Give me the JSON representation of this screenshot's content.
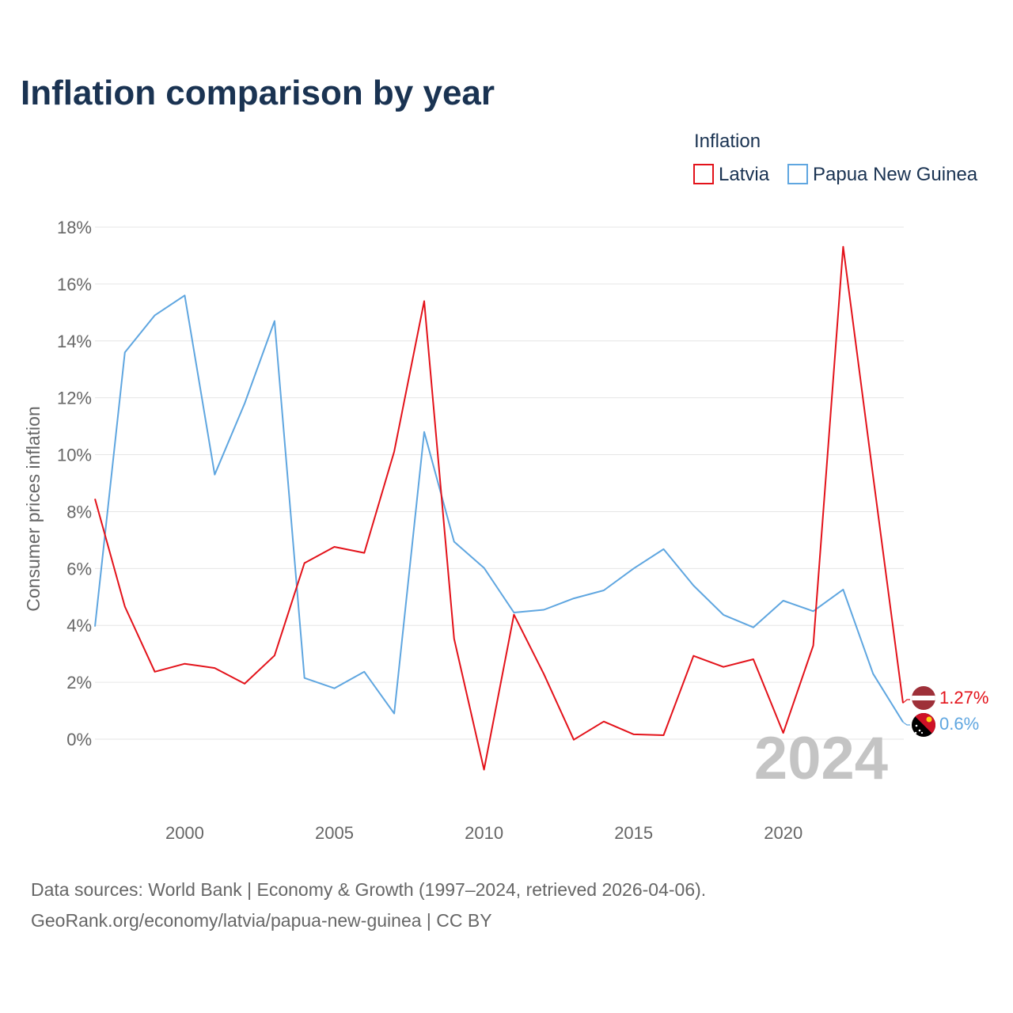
{
  "chart_data": {
    "type": "line",
    "title": "Inflation comparison by year",
    "ylabel": "Consumer prices inflation",
    "xlabel": "",
    "legend_title": "Inflation",
    "legend_position": "top-right",
    "x": [
      1997,
      1998,
      1999,
      2000,
      2001,
      2002,
      2003,
      2004,
      2005,
      2006,
      2007,
      2008,
      2009,
      2010,
      2011,
      2012,
      2013,
      2014,
      2015,
      2016,
      2017,
      2018,
      2019,
      2020,
      2021,
      2022,
      2023,
      2024
    ],
    "xlim": [
      1997,
      2024
    ],
    "ylim": [
      -2,
      18
    ],
    "y_ticks": [
      0,
      2,
      4,
      6,
      8,
      10,
      12,
      14,
      16,
      18
    ],
    "y_tick_labels": [
      "0%",
      "2%",
      "4%",
      "6%",
      "8%",
      "10%",
      "12%",
      "14%",
      "16%",
      "18%"
    ],
    "x_ticks": [
      2000,
      2005,
      2010,
      2015,
      2020
    ],
    "x_tick_labels": [
      "2000",
      "2005",
      "2010",
      "2015",
      "2020"
    ],
    "grid": true,
    "series": [
      {
        "name": "Latvia",
        "color": "#e3121a",
        "values": [
          8.45,
          4.66,
          2.37,
          2.65,
          2.5,
          1.95,
          2.94,
          6.19,
          6.76,
          6.55,
          10.11,
          15.4,
          3.53,
          -1.07,
          4.38,
          2.29,
          -0.02,
          0.62,
          0.17,
          0.14,
          2.93,
          2.54,
          2.81,
          0.22,
          3.29,
          17.31,
          9.25,
          1.27
        ],
        "end_label": "1.27%"
      },
      {
        "name": "Papua New Guinea",
        "color": "#5fa6e0",
        "values": [
          3.96,
          13.6,
          14.9,
          15.6,
          9.3,
          11.8,
          14.7,
          2.15,
          1.79,
          2.37,
          0.9,
          10.8,
          6.94,
          6.02,
          4.45,
          4.55,
          4.95,
          5.23,
          6.0,
          6.68,
          5.4,
          4.37,
          3.93,
          4.87,
          4.5,
          5.26,
          2.3,
          0.6
        ],
        "end_label": "0.6%"
      }
    ],
    "current_year_label": "2024"
  },
  "footer": {
    "source_line1": "Data sources: World Bank | Economy & Growth (1997–2024, retrieved 2026-04-06).",
    "source_line2": "GeoRank.org/economy/latvia/papua-new-guinea | CC BY"
  },
  "flags": {
    "latvia": "latvia-flag-icon",
    "papua_new_guinea": "papua-new-guinea-flag-icon"
  }
}
